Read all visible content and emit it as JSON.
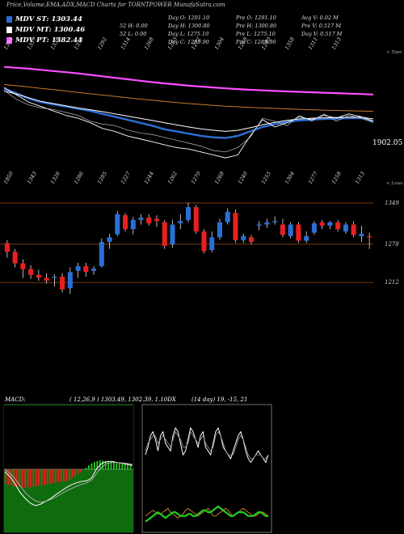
{
  "header": {
    "title": "Price,Volume,EMA,ADX,MACD Charts for TORNTPOWER MunafaSutra.com"
  },
  "legend": [
    {
      "label": "MDV ST: 1303.44",
      "color": "#2a6fd6"
    },
    {
      "label": "MDV MT: 1300.46",
      "color": "#ffffff"
    },
    {
      "label": "MDV PT: 1382.44",
      "color": "#ff4dff"
    }
  ],
  "stats": {
    "col1": [
      "Day O: 1291.10",
      "Day H: 1300.80",
      "Day L: 1275.10",
      "Day C: 1289.90"
    ],
    "col1b": [
      "52 H: 0.00",
      "52 L: 0.00"
    ],
    "col2": [
      "Pre O: 1291.10",
      "Pre H: 1300.80",
      "Pre L: 1275.10",
      "Pre C: 1289.90"
    ],
    "col3": [
      "Avg V: 0.02 M",
      "Pre V: 0.517 M",
      "Day V: 0.517 M"
    ]
  },
  "labels": {
    "top_right": "< Tops",
    "lower_right": "< Lows",
    "price_readout": "1902.05",
    "macd_title": "MACD:",
    "macd_values": "( 12,26,9 ) 1303.49, 1302.39, 1.10DX",
    "adx_values": "(14 day) 19, -15, 21"
  },
  "colors": {
    "up": "#2a6fd6",
    "down": "#e82020",
    "magenta": "#ff4dff",
    "orange": "#c77a2a",
    "hline": "#a0521a",
    "green": "#22cc22"
  },
  "chart_data": [
    {
      "type": "line",
      "name": "ema_panel",
      "top_ticks": [
        "1394",
        "1357",
        "1338",
        "1358",
        "1292",
        "1314",
        "1268",
        "1283",
        "1272",
        "1304",
        "1268",
        "1240",
        "1358",
        "1311",
        "1313"
      ],
      "bottom_ticks": [
        "1950",
        "1343",
        "1326",
        "1286",
        "1285",
        "1227",
        "1244",
        "1262",
        "1270",
        "1268",
        "1240",
        "1255",
        "1304",
        "1277",
        "1258",
        "1313"
      ],
      "ylim": [
        1700,
        2500
      ],
      "series": [
        {
          "key": "pt",
          "values": [
            2430,
            2424,
            2418,
            2410,
            2402,
            2394,
            2386,
            2376,
            2366,
            2356,
            2346,
            2336,
            2326,
            2318,
            2310,
            2302,
            2296,
            2290,
            2284,
            2279,
            2274,
            2270,
            2266,
            2263,
            2260,
            2257,
            2254,
            2251,
            2248,
            2245,
            2242
          ]
        },
        {
          "key": "orange",
          "values": [
            2310,
            2302,
            2293,
            2284,
            2275,
            2266,
            2256,
            2247,
            2238,
            2229,
            2220,
            2211,
            2203,
            2195,
            2187,
            2180,
            2174,
            2168,
            2162,
            2158,
            2154,
            2150,
            2147,
            2144,
            2141,
            2138,
            2135,
            2133,
            2131,
            2129,
            2127
          ]
        },
        {
          "key": "st",
          "values": [
            2280,
            2250,
            2215,
            2190,
            2175,
            2160,
            2145,
            2130,
            2110,
            2090,
            2070,
            2050,
            2030,
            2005,
            1990,
            1975,
            1960,
            1950,
            1945,
            1960,
            1990,
            2020,
            2040,
            2055,
            2065,
            2070,
            2075,
            2078,
            2080,
            2082,
            2060
          ]
        },
        {
          "key": "mt",
          "values": [
            2265,
            2245,
            2220,
            2195,
            2180,
            2165,
            2150,
            2138,
            2125,
            2110,
            2095,
            2080,
            2065,
            2050,
            2035,
            2020,
            2008,
            1998,
            1990,
            1998,
            2015,
            2035,
            2052,
            2065,
            2075,
            2080,
            2083,
            2085,
            2087,
            2088,
            2075
          ]
        },
        {
          "key": "price",
          "values": [
            2290,
            2240,
            2190,
            2160,
            2130,
            2100,
            2080,
            2050,
            2010,
            1990,
            1960,
            1940,
            1920,
            1900,
            1880,
            1870,
            1850,
            1830,
            1810,
            1830,
            1960,
            2070,
            2020,
            2050,
            2090,
            2070,
            2100,
            2080,
            2110,
            2090,
            2060
          ]
        },
        {
          "key": "price2",
          "values": [
            2270,
            2210,
            2170,
            2150,
            2140,
            2120,
            2100,
            2060,
            2040,
            2030,
            2000,
            1980,
            1970,
            1950,
            1930,
            1910,
            1890,
            1860,
            1850,
            1880,
            1950,
            2080,
            2060,
            2030,
            2100,
            2060,
            2110,
            2060,
            2100,
            2080,
            2050
          ]
        }
      ]
    },
    {
      "type": "candlestick",
      "name": "price_panel",
      "ylim": [
        1180,
        1370
      ],
      "hlines": [
        1349,
        1278,
        1212
      ],
      "hline_labels": [
        "1349",
        "1278",
        "1212"
      ],
      "candles": [
        [
          1280,
          1285,
          1255,
          1265
        ],
        [
          1265,
          1270,
          1238,
          1245
        ],
        [
          1245,
          1252,
          1220,
          1235
        ],
        [
          1235,
          1242,
          1218,
          1225
        ],
        [
          1225,
          1234,
          1215,
          1220
        ],
        [
          1220,
          1228,
          1210,
          1215
        ],
        [
          1220,
          1226,
          1205,
          1222
        ],
        [
          1222,
          1228,
          1195,
          1200
        ],
        [
          1202,
          1238,
          1192,
          1230
        ],
        [
          1232,
          1246,
          1220,
          1240
        ],
        [
          1240,
          1246,
          1222,
          1230
        ],
        [
          1232,
          1240,
          1225,
          1236
        ],
        [
          1240,
          1288,
          1238,
          1282
        ],
        [
          1282,
          1296,
          1270,
          1290
        ],
        [
          1295,
          1335,
          1292,
          1330
        ],
        [
          1328,
          1332,
          1300,
          1304
        ],
        [
          1304,
          1325,
          1295,
          1320
        ],
        [
          1320,
          1330,
          1312,
          1324
        ],
        [
          1324,
          1330,
          1310,
          1314
        ],
        [
          1322,
          1328,
          1308,
          1318
        ],
        [
          1316,
          1320,
          1270,
          1275
        ],
        [
          1278,
          1320,
          1272,
          1312
        ],
        [
          1314,
          1330,
          1304,
          1318
        ],
        [
          1320,
          1350,
          1316,
          1342
        ],
        [
          1342,
          1346,
          1296,
          1300
        ],
        [
          1300,
          1304,
          1262,
          1266
        ],
        [
          1268,
          1300,
          1264,
          1290
        ],
        [
          1290,
          1322,
          1286,
          1316
        ],
        [
          1316,
          1340,
          1312,
          1334
        ],
        [
          1332,
          1338,
          1280,
          1285
        ],
        [
          1285,
          1296,
          1280,
          1292
        ],
        [
          1290,
          1294,
          1278,
          1282
        ],
        [
          1310,
          1318,
          1302,
          1312
        ],
        [
          1312,
          1322,
          1306,
          1316
        ],
        [
          1316,
          1326,
          1312,
          1318
        ],
        [
          1312,
          1322,
          1290,
          1294
        ],
        [
          1292,
          1316,
          1288,
          1312
        ],
        [
          1312,
          1316,
          1280,
          1284
        ],
        [
          1284,
          1300,
          1280,
          1292
        ],
        [
          1298,
          1318,
          1294,
          1314
        ],
        [
          1316,
          1320,
          1304,
          1310
        ],
        [
          1310,
          1318,
          1304,
          1316
        ],
        [
          1316,
          1320,
          1300,
          1304
        ],
        [
          1300,
          1316,
          1296,
          1312
        ],
        [
          1312,
          1318,
          1290,
          1294
        ],
        [
          1292,
          1310,
          1282,
          1296
        ],
        [
          1292,
          1298,
          1270,
          1290
        ]
      ]
    },
    {
      "type": "bar",
      "name": "macd_panel",
      "ylim": [
        -1,
        1
      ],
      "histogram": [
        -0.3,
        -0.32,
        -0.34,
        -0.35,
        -0.36,
        -0.37,
        -0.38,
        -0.38,
        -0.38,
        -0.37,
        -0.36,
        -0.35,
        -0.34,
        -0.33,
        -0.32,
        -0.31,
        -0.3,
        -0.29,
        -0.28,
        -0.27,
        -0.26,
        -0.25,
        -0.24,
        -0.22,
        -0.18,
        -0.14,
        -0.1,
        -0.06,
        -0.02,
        0.03,
        0.08,
        0.12,
        0.15,
        0.17,
        0.18,
        0.18,
        0.17,
        0.16,
        0.15,
        0.14,
        0.13,
        0.12,
        0.11,
        0.1,
        0.09,
        0.08
      ],
      "series": [
        {
          "key": "macd",
          "values": [
            -0.05,
            -0.15,
            -0.3,
            -0.48,
            -0.6,
            -0.7,
            -0.75,
            -0.72,
            -0.66,
            -0.6,
            -0.52,
            -0.45,
            -0.38,
            -0.32,
            -0.28,
            -0.25,
            -0.24,
            -0.18,
            0.02,
            0.12,
            0.16,
            0.16,
            0.14,
            0.12,
            0.1,
            0.08
          ]
        },
        {
          "key": "signal",
          "values": [
            0.0,
            -0.08,
            -0.2,
            -0.34,
            -0.48,
            -0.58,
            -0.65,
            -0.68,
            -0.66,
            -0.62,
            -0.57,
            -0.51,
            -0.45,
            -0.4,
            -0.35,
            -0.31,
            -0.28,
            -0.22,
            -0.08,
            0.05,
            0.12,
            0.14,
            0.14,
            0.13,
            0.12,
            0.1
          ]
        }
      ]
    },
    {
      "type": "line",
      "name": "adx_panel",
      "ylim": [
        0,
        60
      ],
      "series": [
        {
          "key": "plus",
          "values": [
            38,
            42,
            48,
            50,
            46,
            40,
            48,
            50,
            44,
            42,
            40,
            48,
            52,
            50,
            44,
            38,
            40,
            46,
            52,
            50,
            46,
            42,
            48,
            50,
            42,
            40,
            38,
            44,
            50,
            52,
            48,
            42,
            40,
            38,
            36,
            40,
            44,
            48,
            50,
            46,
            40,
            36,
            34,
            36,
            38,
            40,
            38,
            36,
            34,
            38
          ]
        },
        {
          "key": "plus2",
          "values": [
            40,
            44,
            46,
            48,
            48,
            44,
            46,
            48,
            46,
            44,
            42,
            46,
            50,
            48,
            46,
            42,
            42,
            44,
            50,
            48,
            46,
            44,
            46,
            48,
            44,
            42,
            40,
            42,
            48,
            50,
            48,
            44,
            40,
            38,
            38,
            38,
            42,
            46,
            48,
            46,
            42,
            38,
            36,
            36,
            38,
            38,
            38,
            36,
            36,
            38
          ]
        },
        {
          "key": "minus",
          "values": [
            6,
            7,
            8,
            9,
            8,
            7,
            7,
            8,
            9,
            10,
            8,
            7,
            6,
            5,
            6,
            7,
            9,
            10,
            9,
            8,
            7,
            6,
            7,
            8,
            9,
            10,
            8,
            6,
            6,
            7,
            8,
            9,
            10,
            9,
            7,
            6,
            7,
            8,
            9,
            10,
            9,
            8,
            7,
            6,
            6,
            7,
            8,
            8,
            7,
            6
          ]
        },
        {
          "key": "adx",
          "values": [
            3,
            4,
            5,
            6,
            7,
            8,
            7,
            6,
            5,
            6,
            7,
            8,
            8,
            7,
            6,
            6,
            6,
            7,
            7,
            6,
            6,
            7,
            8,
            9,
            9,
            8,
            8,
            9,
            10,
            11,
            10,
            9,
            8,
            7,
            6,
            6,
            7,
            8,
            8,
            8,
            7,
            6,
            6,
            6,
            7,
            8,
            8,
            7,
            6,
            6
          ]
        }
      ]
    }
  ]
}
